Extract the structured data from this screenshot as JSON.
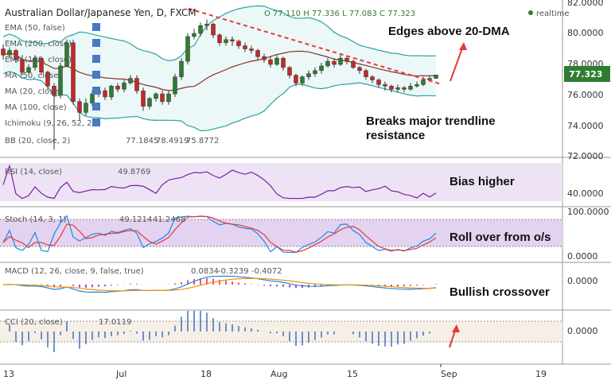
{
  "header": {
    "title": "Australian Dollar/Japanese Yen, D, FXCM",
    "ohlc": "O 77.110 H 77.336 L 77.083 C 77.323",
    "realtime": "realtime"
  },
  "main_indicators": [
    "EMA (50, false)",
    "EMA (200, close)",
    "EMA (100, close)",
    "MA (50, close)",
    "MA (20, close)",
    "MA (100, close)",
    "Ichimoku (9, 26, 52, 26)"
  ],
  "bb_label": "BB (20, close, 2)",
  "bb_values": [
    "77.1845",
    "78.4919",
    "75.8772"
  ],
  "price_axis": [
    "82.0000",
    "80.0000",
    "78.0000",
    "76.0000",
    "74.0000",
    "72.0000"
  ],
  "last_price": "77.323",
  "annotations": {
    "edges": "Edges above 20-DMA",
    "breaks_line1": "Breaks major trendline",
    "breaks_line2": "resistance",
    "bias": "Bias higher",
    "rollover": "Roll over from o/s",
    "crossover": "Bullish crossover"
  },
  "rsi": {
    "label": "RSI (14, close)",
    "value": "49.8769",
    "axis": [
      "40.0000"
    ]
  },
  "stoch": {
    "label": "Stoch (14, 3, 1)",
    "values": [
      "49.1214",
      "41.2468"
    ],
    "axis": [
      "100.0000",
      "0.0000"
    ]
  },
  "macd": {
    "label": "MACD (12, 26, close, 9, false, true)",
    "values": [
      "0.0834",
      "-0.3239",
      "-0.4072"
    ],
    "axis": [
      "0.0000"
    ]
  },
  "cci": {
    "label": "CCI (20, close)",
    "value": "17.0119",
    "axis": [
      "0.0000"
    ]
  },
  "x_axis": [
    "13",
    "Jul",
    "18",
    "Aug",
    "15",
    "Sep",
    "19"
  ],
  "colors": {
    "bull": "#2e7d32",
    "bear": "#c62828",
    "bb": "#26a69a",
    "ma": "#8d2f2f",
    "trend": "#e53935",
    "rsi": "#7b1fa2",
    "stoch_k": "#1e88e5",
    "stoch_d": "#e53935",
    "macd": "#1e88e5",
    "signal": "#fb8c00",
    "panel_fill": "#e6d8f2"
  },
  "chart_data": {
    "type": "candlestick",
    "title": "Australian Dollar/Japanese Yen, D, FXCM",
    "ylim": [
      72,
      82
    ],
    "open": [
      79.0,
      78.6,
      78.9,
      78.3,
      77.5,
      77.8,
      78.4,
      77.5,
      76.6,
      76.0,
      77.9,
      79.4,
      75.6,
      74.9,
      75.5,
      76.1,
      76.3,
      75.9,
      76.6,
      76.4,
      76.8,
      77.1,
      76.3,
      75.3,
      75.8,
      76.1,
      75.6,
      76.1,
      77.2,
      78.2,
      79.8,
      80.0,
      80.5,
      80.6,
      79.9,
      79.4,
      79.6,
      79.5,
      79.2,
      79.0,
      78.9,
      78.5,
      78.3,
      78.0,
      78.4,
      77.8,
      77.3,
      76.8,
      77.2,
      77.4,
      77.6,
      77.9,
      78.2,
      78.0,
      78.4,
      78.2,
      77.8,
      77.6,
      77.2,
      77.0,
      76.7,
      76.6,
      76.4,
      76.5,
      76.4,
      76.6,
      76.7,
      77.0,
      77.1
    ],
    "close": [
      78.6,
      78.9,
      78.3,
      77.5,
      77.8,
      78.4,
      77.5,
      76.6,
      76.0,
      77.9,
      79.4,
      75.6,
      74.9,
      75.5,
      76.1,
      76.3,
      75.9,
      76.6,
      76.4,
      76.8,
      77.1,
      76.3,
      75.3,
      75.8,
      76.1,
      75.6,
      76.1,
      77.2,
      78.2,
      79.8,
      80.0,
      80.5,
      80.6,
      79.9,
      79.4,
      79.6,
      79.5,
      79.2,
      79.0,
      78.9,
      78.5,
      78.3,
      78.0,
      78.4,
      77.8,
      77.3,
      76.8,
      77.2,
      77.4,
      77.6,
      77.9,
      78.2,
      78.0,
      78.4,
      78.2,
      77.8,
      77.6,
      77.2,
      77.0,
      76.7,
      76.6,
      76.4,
      76.5,
      76.4,
      76.6,
      76.7,
      77.0,
      77.1,
      77.32
    ],
    "high": [
      79.3,
      79.1,
      79.0,
      78.6,
      78.0,
      78.6,
      78.5,
      77.6,
      76.8,
      78.1,
      79.6,
      79.6,
      75.8,
      75.8,
      76.3,
      76.5,
      76.5,
      76.7,
      76.8,
      77.0,
      77.3,
      77.3,
      76.5,
      75.9,
      76.2,
      76.3,
      76.3,
      77.4,
      78.4,
      80.0,
      80.3,
      80.7,
      80.9,
      80.7,
      80.0,
      79.8,
      79.8,
      79.6,
      79.4,
      79.2,
      79.0,
      78.7,
      78.5,
      78.6,
      78.5,
      77.9,
      77.4,
      77.3,
      77.6,
      77.8,
      78.1,
      78.4,
      78.4,
      78.6,
      78.5,
      78.3,
      77.9,
      77.7,
      77.3,
      77.1,
      76.9,
      76.7,
      76.7,
      76.6,
      76.8,
      76.9,
      77.2,
      77.3,
      77.34
    ],
    "low": [
      78.3,
      78.4,
      78.1,
      77.3,
      77.3,
      77.6,
      77.3,
      76.4,
      72.5,
      75.8,
      77.8,
      75.4,
      74.4,
      74.7,
      75.3,
      75.9,
      75.7,
      75.7,
      76.2,
      76.2,
      76.7,
      76.1,
      75.0,
      75.1,
      75.6,
      75.4,
      75.4,
      75.9,
      77.0,
      78.0,
      79.6,
      79.8,
      80.2,
      79.7,
      79.2,
      79.2,
      79.2,
      79.0,
      78.8,
      78.7,
      78.3,
      78.1,
      77.8,
      77.9,
      77.6,
      77.1,
      76.6,
      76.6,
      77.0,
      77.2,
      77.4,
      77.8,
      77.8,
      77.9,
      78.0,
      77.7,
      77.4,
      77.0,
      76.8,
      76.5,
      76.3,
      76.2,
      76.2,
      76.2,
      76.3,
      76.5,
      76.6,
      76.9,
      77.08
    ]
  }
}
